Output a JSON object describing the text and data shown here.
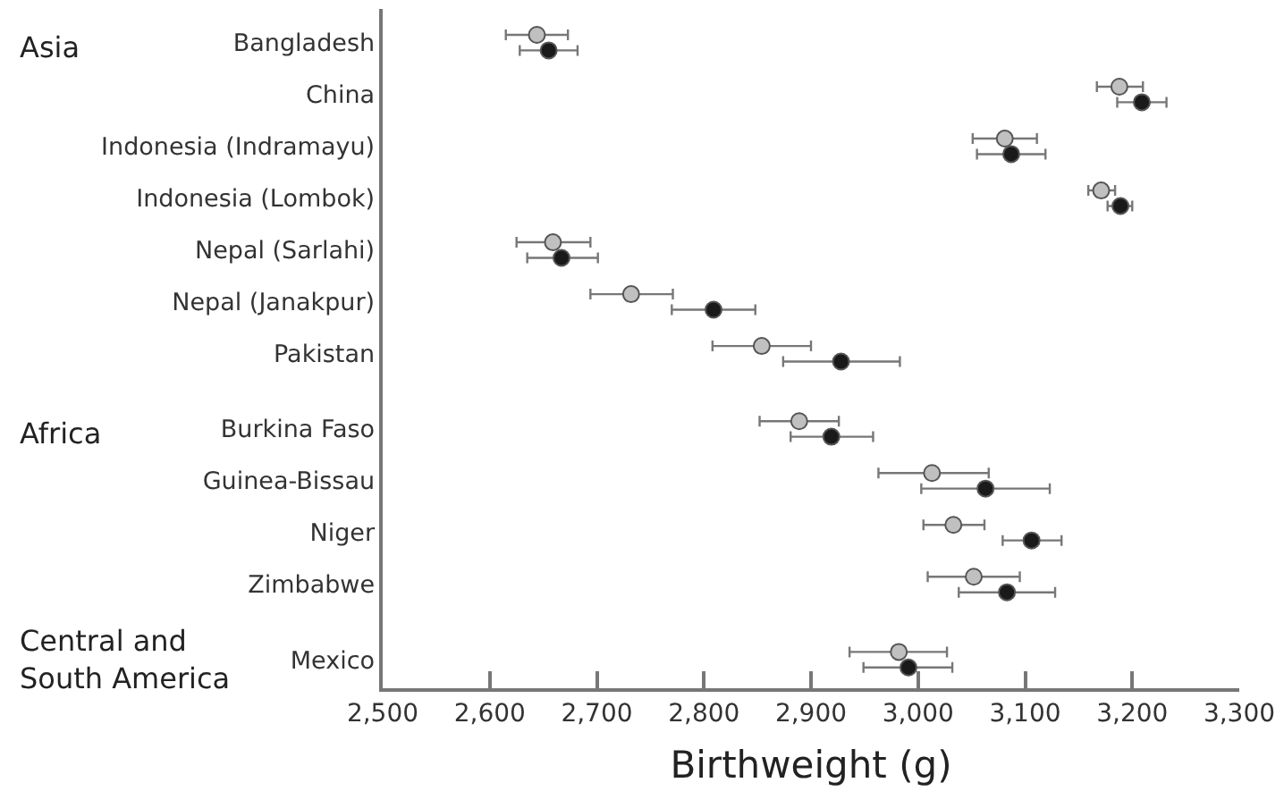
{
  "chart_data": {
    "type": "scatter",
    "xlabel": "Birthweight (g)",
    "categories": [
      "Bangladesh",
      "China",
      "Indonesia (Indramayu)",
      "Indonesia (Lombok)",
      "Nepal (Sarlahi)",
      "Nepal (Janakpur)",
      "Pakistan",
      "Burkina Faso",
      "Guinea-Bissau",
      "Niger",
      "Zimbabwe",
      "Mexico"
    ],
    "series": [
      {
        "color": "#c0c0c0",
        "values": [
          2644,
          3188,
          3081,
          3171,
          2659,
          2732,
          2854,
          2889,
          3013,
          3033,
          3052,
          2982
        ],
        "errors": [
          [
            2615,
            2673
          ],
          [
            3167,
            3210
          ],
          [
            3051,
            3111
          ],
          [
            3159,
            3184
          ],
          [
            2625,
            2694
          ],
          [
            2694,
            2771
          ],
          [
            2808,
            2900
          ],
          [
            2852,
            2926
          ],
          [
            2963,
            3066
          ],
          [
            3005,
            3062
          ],
          [
            3009,
            3095
          ],
          [
            2936,
            3027
          ]
        ]
      },
      {
        "color": "#1a1a1a",
        "values": [
          2655,
          3209,
          3087,
          3189,
          2667,
          2809,
          2928,
          2919,
          3063,
          3106,
          3083,
          2991
        ],
        "errors": [
          [
            2628,
            2682
          ],
          [
            3186,
            3232
          ],
          [
            3055,
            3119
          ],
          [
            3177,
            3200
          ],
          [
            2635,
            2701
          ],
          [
            2770,
            2848
          ],
          [
            2874,
            2983
          ],
          [
            2881,
            2958
          ],
          [
            3003,
            3123
          ],
          [
            3079,
            3134
          ],
          [
            3038,
            3128
          ],
          [
            2949,
            3032
          ]
        ]
      }
    ],
    "annotations": [
      "Asia",
      "Africa",
      "Central and South America"
    ],
    "xlim": [
      2500,
      3300
    ],
    "xticks": [
      {
        "value": 2500,
        "label": "2,500"
      },
      {
        "value": 2600,
        "label": "2,600"
      },
      {
        "value": 2700,
        "label": "2,700"
      },
      {
        "value": 2800,
        "label": "2,800"
      },
      {
        "value": 2900,
        "label": "2,900"
      },
      {
        "value": 3000,
        "label": "3,000"
      },
      {
        "value": 3100,
        "label": "3,100"
      },
      {
        "value": 3200,
        "label": "3,200"
      },
      {
        "value": 3300,
        "label": "3,300"
      }
    ],
    "orientation": "horizontal",
    "marker": "circle"
  }
}
